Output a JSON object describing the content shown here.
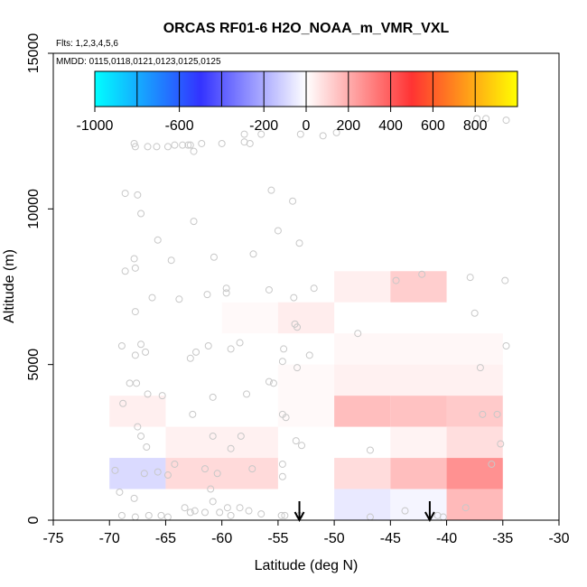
{
  "chart_data": {
    "type": "heatmap",
    "title": "ORCAS RF01-6 H2O_NOAA_m_VMR_VXL",
    "subtitle_flights": "Flts: 1,2,3,4,5,6",
    "subtitle_dates": "MMDD: 0115,0118,0121,0123,0125,0125",
    "xlabel": "Latitude (deg N)",
    "ylabel": "Altitude (m)",
    "xlim": [
      -75,
      -30
    ],
    "ylim": [
      0,
      15000
    ],
    "x_ticks": [
      -75,
      -70,
      -65,
      -60,
      -55,
      -50,
      -45,
      -40,
      -35,
      -30
    ],
    "y_ticks": [
      0,
      5000,
      10000,
      15000
    ],
    "colorbar": {
      "min": -1000,
      "max": 1000,
      "tick_values": [
        -1000,
        -600,
        -200,
        0,
        200,
        400,
        600,
        800
      ],
      "tick_labels": [
        "-1000",
        "-600",
        "-200",
        "0",
        "200",
        "400",
        "600",
        "800"
      ],
      "major_divisions": [
        -1000,
        -800,
        -600,
        -400,
        -200,
        0,
        200,
        400,
        600,
        800,
        1000
      ],
      "colors": [
        "#00ffff",
        "#3333ff",
        "#ffffff",
        "#ff3333",
        "#ffff00"
      ]
    },
    "cells": [
      {
        "lat": [
          -70,
          -65
        ],
        "alt": [
          3000,
          4000
        ],
        "value": 40
      },
      {
        "lat": [
          -65,
          -55
        ],
        "alt": [
          2000,
          3000
        ],
        "value": 35
      },
      {
        "lat": [
          -70,
          -65
        ],
        "alt": [
          1000,
          2000
        ],
        "value": -90
      },
      {
        "lat": [
          -65,
          -55
        ],
        "alt": [
          1000,
          2000
        ],
        "value": 90
      },
      {
        "lat": [
          -60,
          -55
        ],
        "alt": [
          6000,
          7000
        ],
        "value": 15
      },
      {
        "lat": [
          -55,
          -50
        ],
        "alt": [
          6000,
          7000
        ],
        "value": 45
      },
      {
        "lat": [
          -50,
          -45
        ],
        "alt": [
          7000,
          8000
        ],
        "value": 40
      },
      {
        "lat": [
          -45,
          -40
        ],
        "alt": [
          7000,
          8000
        ],
        "value": 120
      },
      {
        "lat": [
          -50,
          -35
        ],
        "alt": [
          5000,
          6000
        ],
        "value": 20
      },
      {
        "lat": [
          -55,
          -50
        ],
        "alt": [
          3000,
          5000
        ],
        "value": 15
      },
      {
        "lat": [
          -50,
          -35
        ],
        "alt": [
          4000,
          5000
        ],
        "value": 35
      },
      {
        "lat": [
          -50,
          -45
        ],
        "alt": [
          3000,
          4000
        ],
        "value": 160
      },
      {
        "lat": [
          -45,
          -40
        ],
        "alt": [
          3000,
          4000
        ],
        "value": 150
      },
      {
        "lat": [
          -40,
          -35
        ],
        "alt": [
          3000,
          4000
        ],
        "value": 130
      },
      {
        "lat": [
          -45,
          -40
        ],
        "alt": [
          2000,
          3000
        ],
        "value": 30
      },
      {
        "lat": [
          -40,
          -35
        ],
        "alt": [
          2000,
          3000
        ],
        "value": 80
      },
      {
        "lat": [
          -50,
          -45
        ],
        "alt": [
          1000,
          2000
        ],
        "value": 85
      },
      {
        "lat": [
          -45,
          -40
        ],
        "alt": [
          1000,
          2000
        ],
        "value": 160
      },
      {
        "lat": [
          -40,
          -35
        ],
        "alt": [
          1000,
          2000
        ],
        "value": 270
      },
      {
        "lat": [
          -50,
          -45
        ],
        "alt": [
          0,
          1000
        ],
        "value": -55
      },
      {
        "lat": [
          -45,
          -40
        ],
        "alt": [
          0,
          1000
        ],
        "value": -25
      },
      {
        "lat": [
          -40,
          -35
        ],
        "alt": [
          0,
          1000
        ],
        "value": 170
      }
    ],
    "points": [
      [
        -67.8,
        12100
      ],
      [
        -67.7,
        12000
      ],
      [
        -66.6,
        12000
      ],
      [
        -65.8,
        12000
      ],
      [
        -64.8,
        12000
      ],
      [
        -64.2,
        12050
      ],
      [
        -63.5,
        12050
      ],
      [
        -63,
        12050
      ],
      [
        -62.8,
        12050
      ],
      [
        -62.5,
        11850
      ],
      [
        -61.8,
        12100
      ],
      [
        -60,
        12100
      ],
      [
        -58,
        12400
      ],
      [
        -58,
        12150
      ],
      [
        -57.5,
        12100
      ],
      [
        -56.5,
        12400
      ],
      [
        -53,
        12400
      ],
      [
        -51,
        12350
      ],
      [
        -49.8,
        12450
      ],
      [
        -36.5,
        12900
      ],
      [
        -37.3,
        12900
      ],
      [
        -34.7,
        12850
      ],
      [
        -68.6,
        10500
      ],
      [
        -67.5,
        10450
      ],
      [
        -67.2,
        9850
      ],
      [
        -65.7,
        9000
      ],
      [
        -62.5,
        9600
      ],
      [
        -55.6,
        10600
      ],
      [
        -53.7,
        10250
      ],
      [
        -55,
        9300
      ],
      [
        -53.1,
        8900
      ],
      [
        -67.8,
        8400
      ],
      [
        -67.7,
        8100
      ],
      [
        -68.6,
        8000
      ],
      [
        -64.5,
        8350
      ],
      [
        -60.7,
        8450
      ],
      [
        -57.2,
        8550
      ],
      [
        -51.8,
        7450
      ],
      [
        -44.5,
        7700
      ],
      [
        -42.2,
        7900
      ],
      [
        -37.9,
        7800
      ],
      [
        -34.8,
        7700
      ],
      [
        -66.2,
        7150
      ],
      [
        -63.8,
        7100
      ],
      [
        -61.3,
        7250
      ],
      [
        -59.6,
        7300
      ],
      [
        -59.6,
        7450
      ],
      [
        -55.8,
        7400
      ],
      [
        -53.6,
        7150
      ],
      [
        -67.7,
        6700
      ],
      [
        -53.5,
        6300
      ],
      [
        -53.3,
        6200
      ],
      [
        -37.5,
        6650
      ],
      [
        -68.9,
        5600
      ],
      [
        -67.7,
        5300
      ],
      [
        -67.2,
        5650
      ],
      [
        -66.8,
        5400
      ],
      [
        -62.8,
        5200
      ],
      [
        -62.3,
        5400
      ],
      [
        -61.2,
        5600
      ],
      [
        -59.2,
        5500
      ],
      [
        -58.4,
        5700
      ],
      [
        -54.5,
        5500
      ],
      [
        -54.6,
        5100
      ],
      [
        -52.2,
        5300
      ],
      [
        -53.3,
        4900
      ],
      [
        -47.9,
        6000
      ],
      [
        -37,
        4900
      ],
      [
        -34.7,
        5600
      ],
      [
        -68.2,
        4400
      ],
      [
        -67.6,
        4400
      ],
      [
        -66.6,
        4050
      ],
      [
        -65.3,
        4000
      ],
      [
        -60.8,
        3950
      ],
      [
        -57.8,
        4050
      ],
      [
        -55.8,
        4450
      ],
      [
        -55.4,
        4400
      ],
      [
        -54.6,
        3400
      ],
      [
        -54.3,
        3300
      ],
      [
        -36.8,
        3400
      ],
      [
        -35.5,
        3400
      ],
      [
        -68.8,
        3750
      ],
      [
        -67.5,
        3000
      ],
      [
        -62.6,
        3400
      ],
      [
        -67.2,
        2700
      ],
      [
        -66.7,
        2350
      ],
      [
        -60.8,
        2700
      ],
      [
        -59.2,
        2300
      ],
      [
        -58.3,
        2700
      ],
      [
        -53.4,
        2550
      ],
      [
        -52.9,
        2400
      ],
      [
        -46.8,
        2250
      ],
      [
        -35.2,
        2450
      ],
      [
        -69.5,
        1600
      ],
      [
        -66.9,
        1500
      ],
      [
        -65.7,
        1550
      ],
      [
        -64.8,
        1450
      ],
      [
        -64.2,
        1800
      ],
      [
        -61.5,
        1650
      ],
      [
        -60.4,
        1500
      ],
      [
        -57.3,
        1650
      ],
      [
        -54.6,
        1800
      ],
      [
        -54.6,
        1400
      ],
      [
        -61,
        1000
      ],
      [
        -36,
        1800
      ],
      [
        -69.1,
        900
      ],
      [
        -67.8,
        700
      ],
      [
        -67.7,
        100
      ],
      [
        -66.5,
        150
      ],
      [
        -64.8,
        100
      ],
      [
        -63.3,
        400
      ],
      [
        -62.4,
        300
      ],
      [
        -61.5,
        250
      ],
      [
        -60.8,
        600
      ],
      [
        -60.2,
        250
      ],
      [
        -59.5,
        400
      ],
      [
        -58.4,
        400
      ],
      [
        -57.6,
        300
      ],
      [
        -56.5,
        200
      ],
      [
        -54.7,
        150
      ],
      [
        -54.4,
        150
      ],
      [
        -53.1,
        150
      ],
      [
        -46.8,
        100
      ],
      [
        -43.7,
        300
      ],
      [
        -40.8,
        150
      ],
      [
        -40.3,
        100
      ],
      [
        -38.3,
        400
      ],
      [
        -68.9,
        150
      ],
      [
        -65.4,
        150
      ],
      [
        -62.8,
        250
      ],
      [
        -59.2,
        150
      ]
    ],
    "arrows_lat": [
      -53.1,
      -41.5
    ]
  }
}
